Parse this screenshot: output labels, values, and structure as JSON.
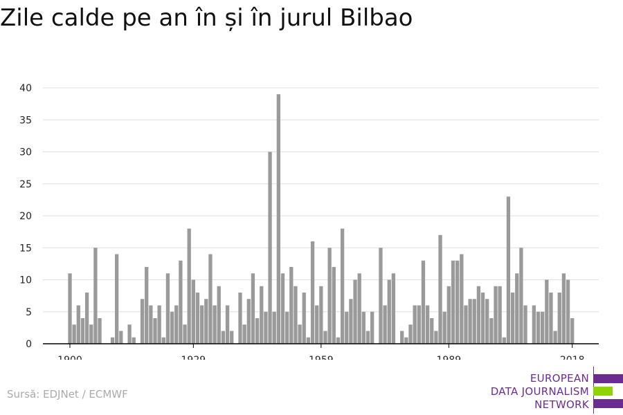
{
  "title": "Zile calde pe an în și în jurul Bilbao",
  "source": "Sursă: EDJNet / ECMWF",
  "logo": {
    "lines": [
      "EUROPEAN",
      "DATA JOURNALISM",
      "NETWORK"
    ],
    "colors": {
      "purple": "#6b2c91",
      "green": "#8fd400"
    }
  },
  "colors": {
    "bar": "#9a9a9a",
    "grid": "#dddddd",
    "axis": "#000000"
  },
  "chart_data": {
    "type": "bar",
    "title": "Zile calde pe an în și în jurul Bilbao",
    "xlabel": "",
    "ylabel": "",
    "ylim": [
      0,
      40
    ],
    "yticks": [
      0,
      5,
      10,
      15,
      20,
      25,
      30,
      35,
      40
    ],
    "xticks": [
      1900,
      1929,
      1959,
      1989,
      2018
    ],
    "grid": true,
    "categories": [
      1900,
      1901,
      1902,
      1903,
      1904,
      1905,
      1906,
      1907,
      1908,
      1909,
      1910,
      1911,
      1912,
      1913,
      1914,
      1915,
      1916,
      1917,
      1918,
      1919,
      1920,
      1921,
      1922,
      1923,
      1924,
      1925,
      1926,
      1927,
      1928,
      1929,
      1930,
      1931,
      1932,
      1933,
      1934,
      1935,
      1936,
      1937,
      1938,
      1939,
      1940,
      1941,
      1942,
      1943,
      1944,
      1945,
      1946,
      1947,
      1948,
      1949,
      1950,
      1951,
      1952,
      1953,
      1954,
      1955,
      1956,
      1957,
      1958,
      1959,
      1960,
      1961,
      1962,
      1963,
      1964,
      1965,
      1966,
      1967,
      1968,
      1969,
      1970,
      1971,
      1972,
      1973,
      1974,
      1975,
      1976,
      1977,
      1978,
      1979,
      1980,
      1981,
      1982,
      1983,
      1984,
      1985,
      1986,
      1987,
      1988,
      1989,
      1990,
      1991,
      1992,
      1993,
      1994,
      1995,
      1996,
      1997,
      1998,
      1999,
      2000,
      2001,
      2002,
      2003,
      2004,
      2005,
      2006,
      2007,
      2008,
      2009,
      2010,
      2011,
      2012,
      2013,
      2014,
      2015,
      2016,
      2017,
      2018
    ],
    "values": [
      11,
      3,
      6,
      4,
      8,
      3,
      15,
      4,
      0,
      0,
      1,
      14,
      2,
      0,
      3,
      1,
      0,
      7,
      12,
      6,
      4,
      6,
      1,
      11,
      5,
      6,
      13,
      3,
      18,
      10,
      8,
      6,
      7,
      14,
      6,
      9,
      2,
      6,
      2,
      0,
      8,
      3,
      7,
      11,
      4,
      9,
      5,
      30,
      5,
      39,
      11,
      5,
      12,
      9,
      3,
      8,
      1,
      16,
      6,
      9,
      2,
      15,
      12,
      1,
      18,
      5,
      7,
      10,
      11,
      5,
      2,
      5,
      0,
      15,
      6,
      10,
      11,
      0,
      2,
      1,
      3,
      6,
      6,
      13,
      6,
      4,
      2,
      17,
      5,
      9,
      13,
      13,
      14,
      6,
      7,
      7,
      9,
      8,
      7,
      4,
      9,
      9,
      1,
      23,
      8,
      11,
      15,
      6,
      0,
      6,
      5,
      5,
      10,
      8,
      2,
      8,
      11,
      10,
      4
    ]
  }
}
